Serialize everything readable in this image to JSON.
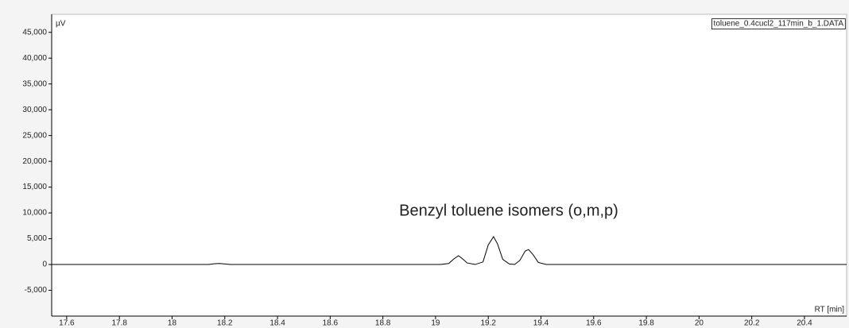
{
  "chart_data": {
    "type": "line",
    "ylabel": "µV",
    "xlabel": "RT [min]",
    "annotations": [
      "Benzyl toluene isomers (o,m,p)"
    ],
    "x": [
      17.543,
      18.14,
      18.16,
      18.18,
      18.2,
      18.22,
      19.02,
      19.05,
      19.07,
      19.087,
      19.1,
      19.12,
      19.15,
      19.18,
      19.2,
      19.22,
      19.235,
      19.255,
      19.28,
      19.3,
      19.32,
      19.34,
      19.353,
      19.37,
      19.39,
      19.42,
      20.56
    ],
    "series": [
      {
        "name": "toluene_0.4cucl2_117min_b_1.DATA",
        "color": "#000000",
        "values": [
          0,
          0,
          150,
          200,
          100,
          0,
          0,
          200,
          1100,
          1700,
          1200,
          300,
          0,
          500,
          3800,
          5400,
          4000,
          1000,
          100,
          0,
          800,
          2600,
          2900,
          1900,
          400,
          0,
          0
        ]
      }
    ],
    "xlim": [
      17.543,
      20.56
    ],
    "xticks": [
      17.6,
      17.8,
      18,
      18.2,
      18.4,
      18.6,
      18.8,
      19,
      19.2,
      19.4,
      19.6,
      19.8,
      20,
      20.2,
      20.4
    ],
    "ylim": [
      -10000,
      48500
    ],
    "yticks": [
      {
        "value": -5000,
        "label": "-5,000"
      },
      0,
      {
        "value": 5000,
        "label": "5,000"
      },
      {
        "value": 10000,
        "label": "10,000"
      },
      {
        "value": 15000,
        "label": "15,000"
      },
      {
        "value": 20000,
        "label": "20,000"
      },
      {
        "value": 25000,
        "label": "25,000"
      },
      {
        "value": 30000,
        "label": "30,000"
      },
      {
        "value": 35000,
        "label": "35,000"
      },
      {
        "value": 40000,
        "label": "40,000"
      },
      {
        "value": 45000,
        "label": "45,000"
      }
    ],
    "grid": false,
    "legend": "upper right"
  }
}
